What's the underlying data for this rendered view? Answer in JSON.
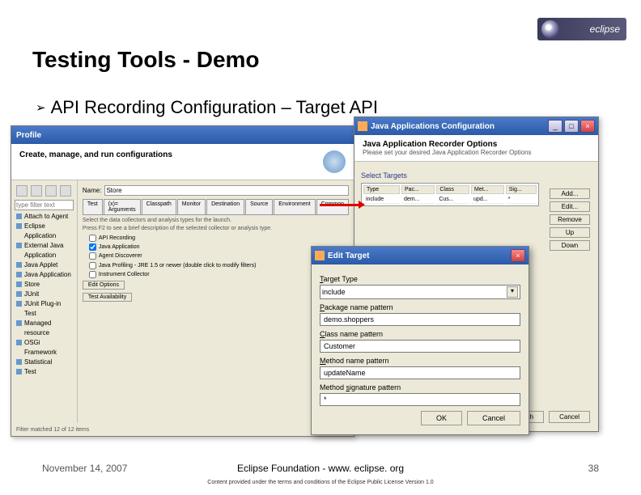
{
  "slide": {
    "title": "Testing Tools - Demo",
    "bullet": "API Recording Configuration – Target API",
    "logo_text": "eclipse"
  },
  "profile": {
    "title": "Profile",
    "banner": "Create, manage, and run configurations",
    "filter_placeholder": "type filter text",
    "tree": [
      "Attach to Agent",
      "Eclipse Application",
      "External Java Application",
      "Java Applet",
      "Java Application",
      "Store",
      "JUnit",
      "JUnit Plug-in Test",
      "Managed resource",
      "OSGi Framework",
      "Statistical",
      "Test"
    ],
    "name_label": "Name:",
    "name_value": "Store",
    "tabs": [
      "Test",
      "(x)= Arguments",
      "Classpath",
      "Monitor",
      "Destination",
      "Source",
      "Environment",
      "Common"
    ],
    "hint1": "Select the data collectors and analysis types for the launch.",
    "hint2": "Press F2 to see a brief description of the selected collector or analysis type.",
    "checks": [
      "API Recording",
      "Java Application",
      "Agent Discoverer",
      "Java Profiling - JRE 1.5 or newer (double click to modify filters)",
      "Instrument Collector"
    ],
    "edit_options": "Edit Options",
    "test_avail": "Test Availability",
    "footer": "Filter matched 12 of 12 items"
  },
  "java": {
    "title": "Java Applications Configuration",
    "banner_title": "Java Application Recorder Options",
    "banner_sub": "Please set your desired Java Application Recorder Options",
    "section": "Select Targets",
    "cols": [
      "Type",
      "Pac...",
      "Class",
      "Met...",
      "Sig..."
    ],
    "row": [
      "include",
      "dem...",
      "Cus...",
      "upd...",
      "*"
    ],
    "side_buttons": [
      "Add...",
      "Edit...",
      "Remove",
      "Up",
      "Down"
    ],
    "finish": "Finish",
    "cancel": "Cancel"
  },
  "edit": {
    "title": "Edit Target",
    "target_type_label": "Target Type",
    "target_type": "include",
    "package_label": "Package name pattern",
    "package": "demo.shoppers",
    "class_label": "Class name pattern",
    "class": "Customer",
    "method_label": "Method name pattern",
    "method": "updateName",
    "sig_label": "Method signature pattern",
    "sig": "*",
    "ok": "OK",
    "cancel": "Cancel"
  },
  "footer": {
    "date": "November 14, 2007",
    "center": "Eclipse Foundation - www. eclipse. org",
    "page": "38",
    "license": "Content provided under the terms and conditions of the Eclipse Public License Version 1.0"
  }
}
